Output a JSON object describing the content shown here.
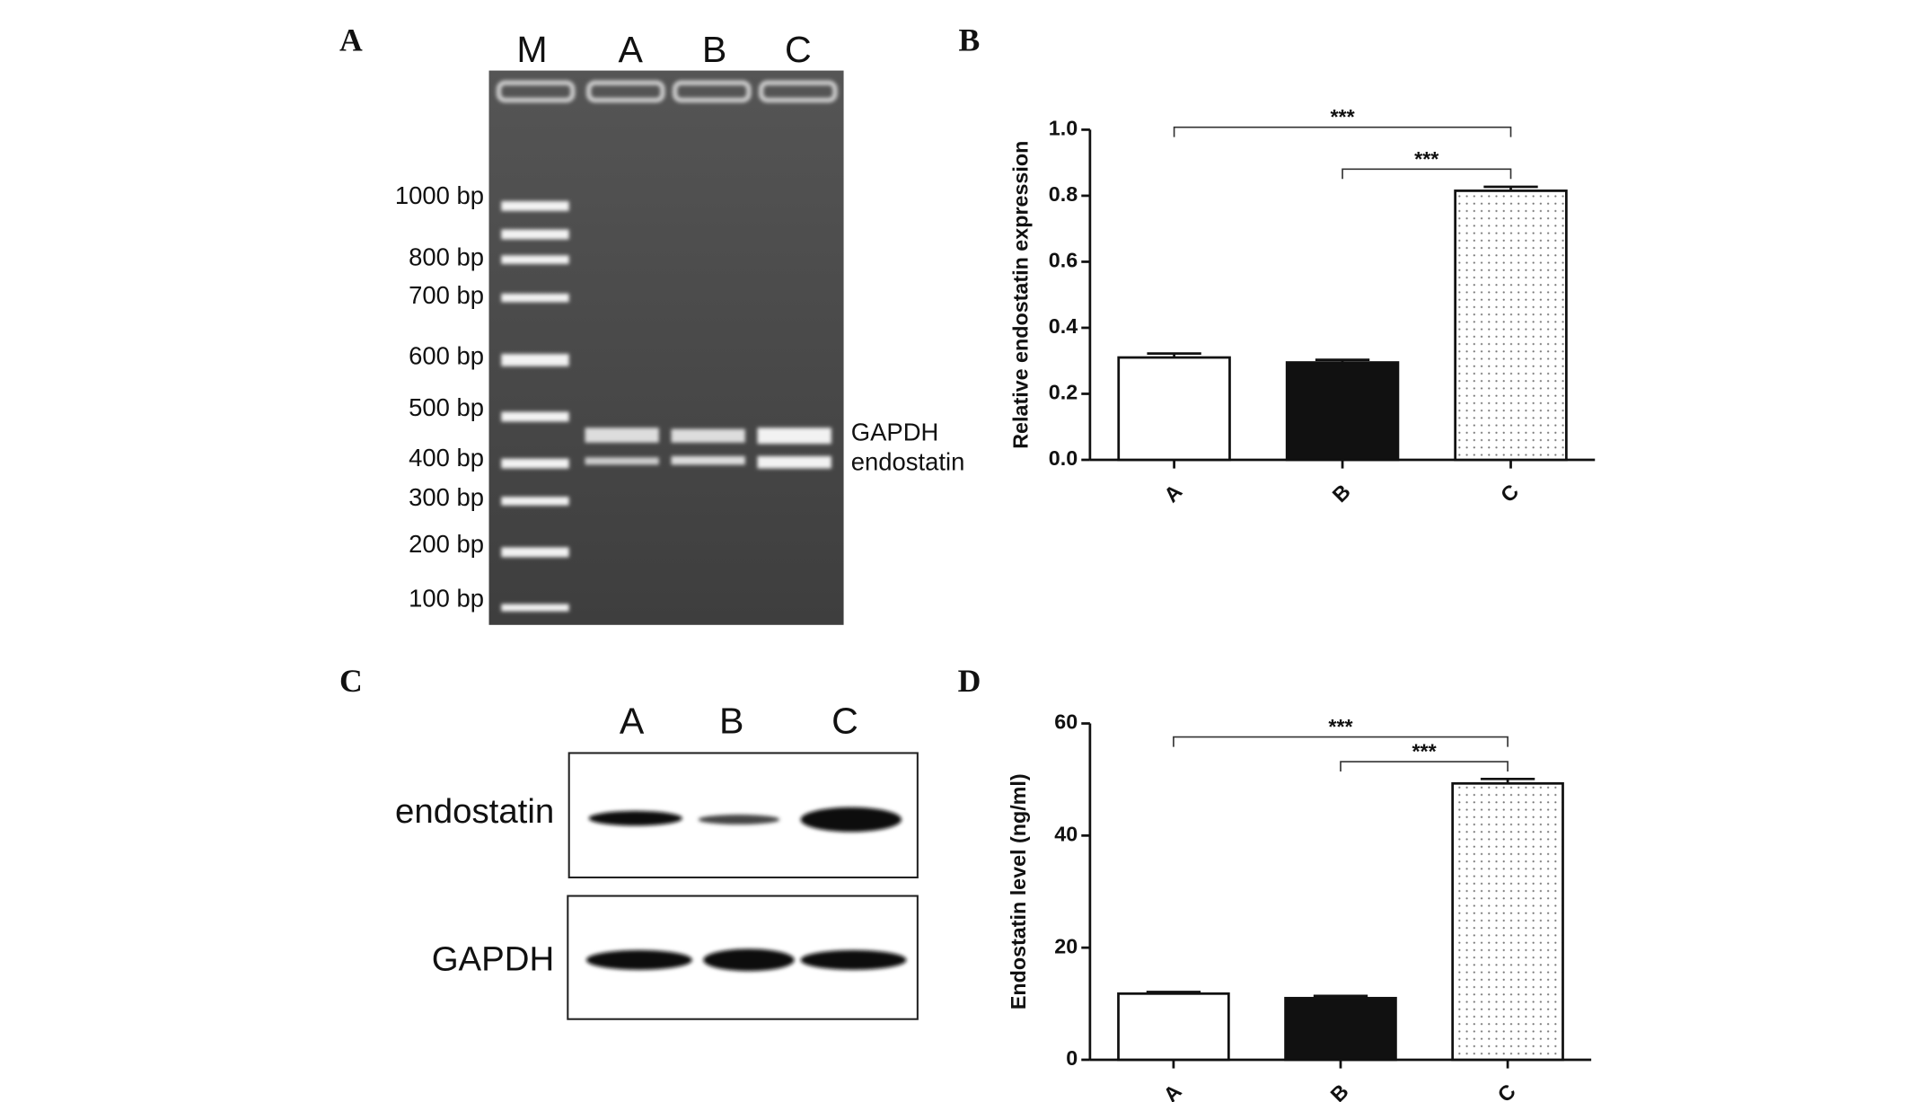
{
  "panels": {
    "labels": [
      "A",
      "B",
      "C",
      "D"
    ],
    "gel": {
      "lanes": [
        "M",
        "A",
        "B",
        "C"
      ],
      "ladder": [
        "1000  bp",
        "800  bp",
        "700  bp",
        "600  bp",
        "500  bp",
        "400  bp",
        "300  bp",
        "200  bp",
        "100  bp"
      ],
      "bands": [
        "GAPDH",
        "endostatin"
      ]
    },
    "western": {
      "lanes": [
        "A",
        "B",
        "C"
      ],
      "rows": [
        "endostatin",
        "GAPDH"
      ]
    }
  },
  "chart_data": [
    {
      "type": "bar",
      "ylabel": "Relative endostatin  expression",
      "categories": [
        "A",
        "B",
        "C"
      ],
      "values": [
        0.31,
        0.295,
        0.815
      ],
      "errors": [
        0.012,
        0.008,
        0.012
      ],
      "colors": [
        "#ffffff",
        "#111111",
        "#ffffff"
      ],
      "hatch": [
        null,
        null,
        "dots"
      ],
      "ylim": [
        0,
        1.0
      ],
      "yticks": [
        {
          "value": 0,
          "label": "0.0"
        },
        0.2,
        0.4,
        0.6,
        0.8,
        {
          "value": 1.0,
          "label": "1.0"
        }
      ],
      "significance": [
        {
          "label": "***",
          "pair": [
            "A",
            "C"
          ]
        },
        {
          "label": "***",
          "pair": [
            "B",
            "C"
          ]
        }
      ]
    },
    {
      "type": "bar",
      "ylabel": "Endostatin level (ng/ml)",
      "categories": [
        "A",
        "B",
        "C"
      ],
      "values": [
        11.8,
        11.0,
        49.3
      ],
      "errors": [
        0.3,
        0.4,
        0.8
      ],
      "colors": [
        "#ffffff",
        "#111111",
        "#ffffff"
      ],
      "hatch": [
        null,
        null,
        "dots"
      ],
      "ylim": [
        0,
        60
      ],
      "yticks": [
        0,
        20,
        40,
        60
      ],
      "significance": [
        {
          "label": "***",
          "pair": [
            "A",
            "C"
          ]
        },
        {
          "label": "***",
          "pair": [
            "B",
            "C"
          ]
        }
      ]
    }
  ]
}
